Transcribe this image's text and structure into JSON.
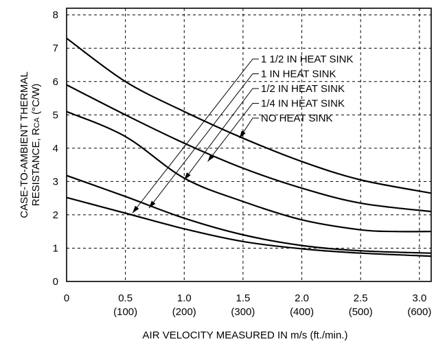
{
  "chart_data": {
    "type": "line",
    "xlabel": "AIR VELOCITY MEASURED IN m/s (ft./min.)",
    "ylabel_line1": "CASE-TO-AMBIENT THERMAL",
    "ylabel_line2_prefix": "RESISTANCE, R",
    "ylabel_line2_sub": "CA",
    "ylabel_line2_suffix": " (°C/W)",
    "xlim": [
      0,
      3.1
    ],
    "ylim": [
      0,
      8.2
    ],
    "grid": true,
    "x_ticks": [
      {
        "v": 0,
        "l1": "0",
        "l2": ""
      },
      {
        "v": 0.5,
        "l1": "0.5",
        "l2": "(100)"
      },
      {
        "v": 1.0,
        "l1": "1.0",
        "l2": "(200)"
      },
      {
        "v": 1.5,
        "l1": "1.5",
        "l2": "(300)"
      },
      {
        "v": 2.0,
        "l1": "2.0",
        "l2": "(400)"
      },
      {
        "v": 2.5,
        "l1": "2.5",
        "l2": "(500)"
      },
      {
        "v": 3.0,
        "l1": "3.0",
        "l2": "(600)"
      }
    ],
    "y_ticks": [
      0,
      1,
      2,
      3,
      4,
      5,
      6,
      7,
      8
    ],
    "series": [
      {
        "name": "1 1/2 IN HEAT SINK",
        "x": [
          0,
          0.5,
          1.0,
          1.5,
          2.0,
          2.5,
          3.1
        ],
        "y": [
          2.52,
          2.05,
          1.58,
          1.2,
          0.98,
          0.85,
          0.76
        ],
        "arrow_to": [
          0.56,
          2.05
        ]
      },
      {
        "name": "1 IN HEAT SINK",
        "x": [
          0,
          0.5,
          1.0,
          1.5,
          2.0,
          2.5,
          3.1
        ],
        "y": [
          3.18,
          2.55,
          1.9,
          1.4,
          1.08,
          0.92,
          0.85
        ],
        "arrow_to": [
          0.7,
          2.2
        ]
      },
      {
        "name": "1/2 IN HEAT SINK",
        "x": [
          0,
          0.5,
          1.0,
          1.5,
          2.0,
          2.5,
          2.8,
          3.1
        ],
        "y": [
          5.1,
          4.35,
          3.1,
          2.4,
          1.85,
          1.55,
          1.5,
          1.5
        ],
        "arrow_to": [
          1.0,
          3.05
        ]
      },
      {
        "name": "1/4 IN HEAT SINK",
        "x": [
          0,
          0.5,
          1.0,
          1.5,
          2.0,
          2.5,
          3.1
        ],
        "y": [
          5.9,
          5.0,
          4.15,
          3.4,
          2.8,
          2.35,
          2.1
        ],
        "arrow_to": [
          1.2,
          3.6
        ]
      },
      {
        "name": "NO HEAT SINK",
        "x": [
          0,
          0.5,
          1.0,
          1.5,
          2.0,
          2.5,
          3.1
        ],
        "y": [
          7.3,
          6.0,
          5.1,
          4.3,
          3.6,
          3.05,
          2.65
        ],
        "arrow_to": [
          1.47,
          4.3
        ]
      }
    ]
  }
}
